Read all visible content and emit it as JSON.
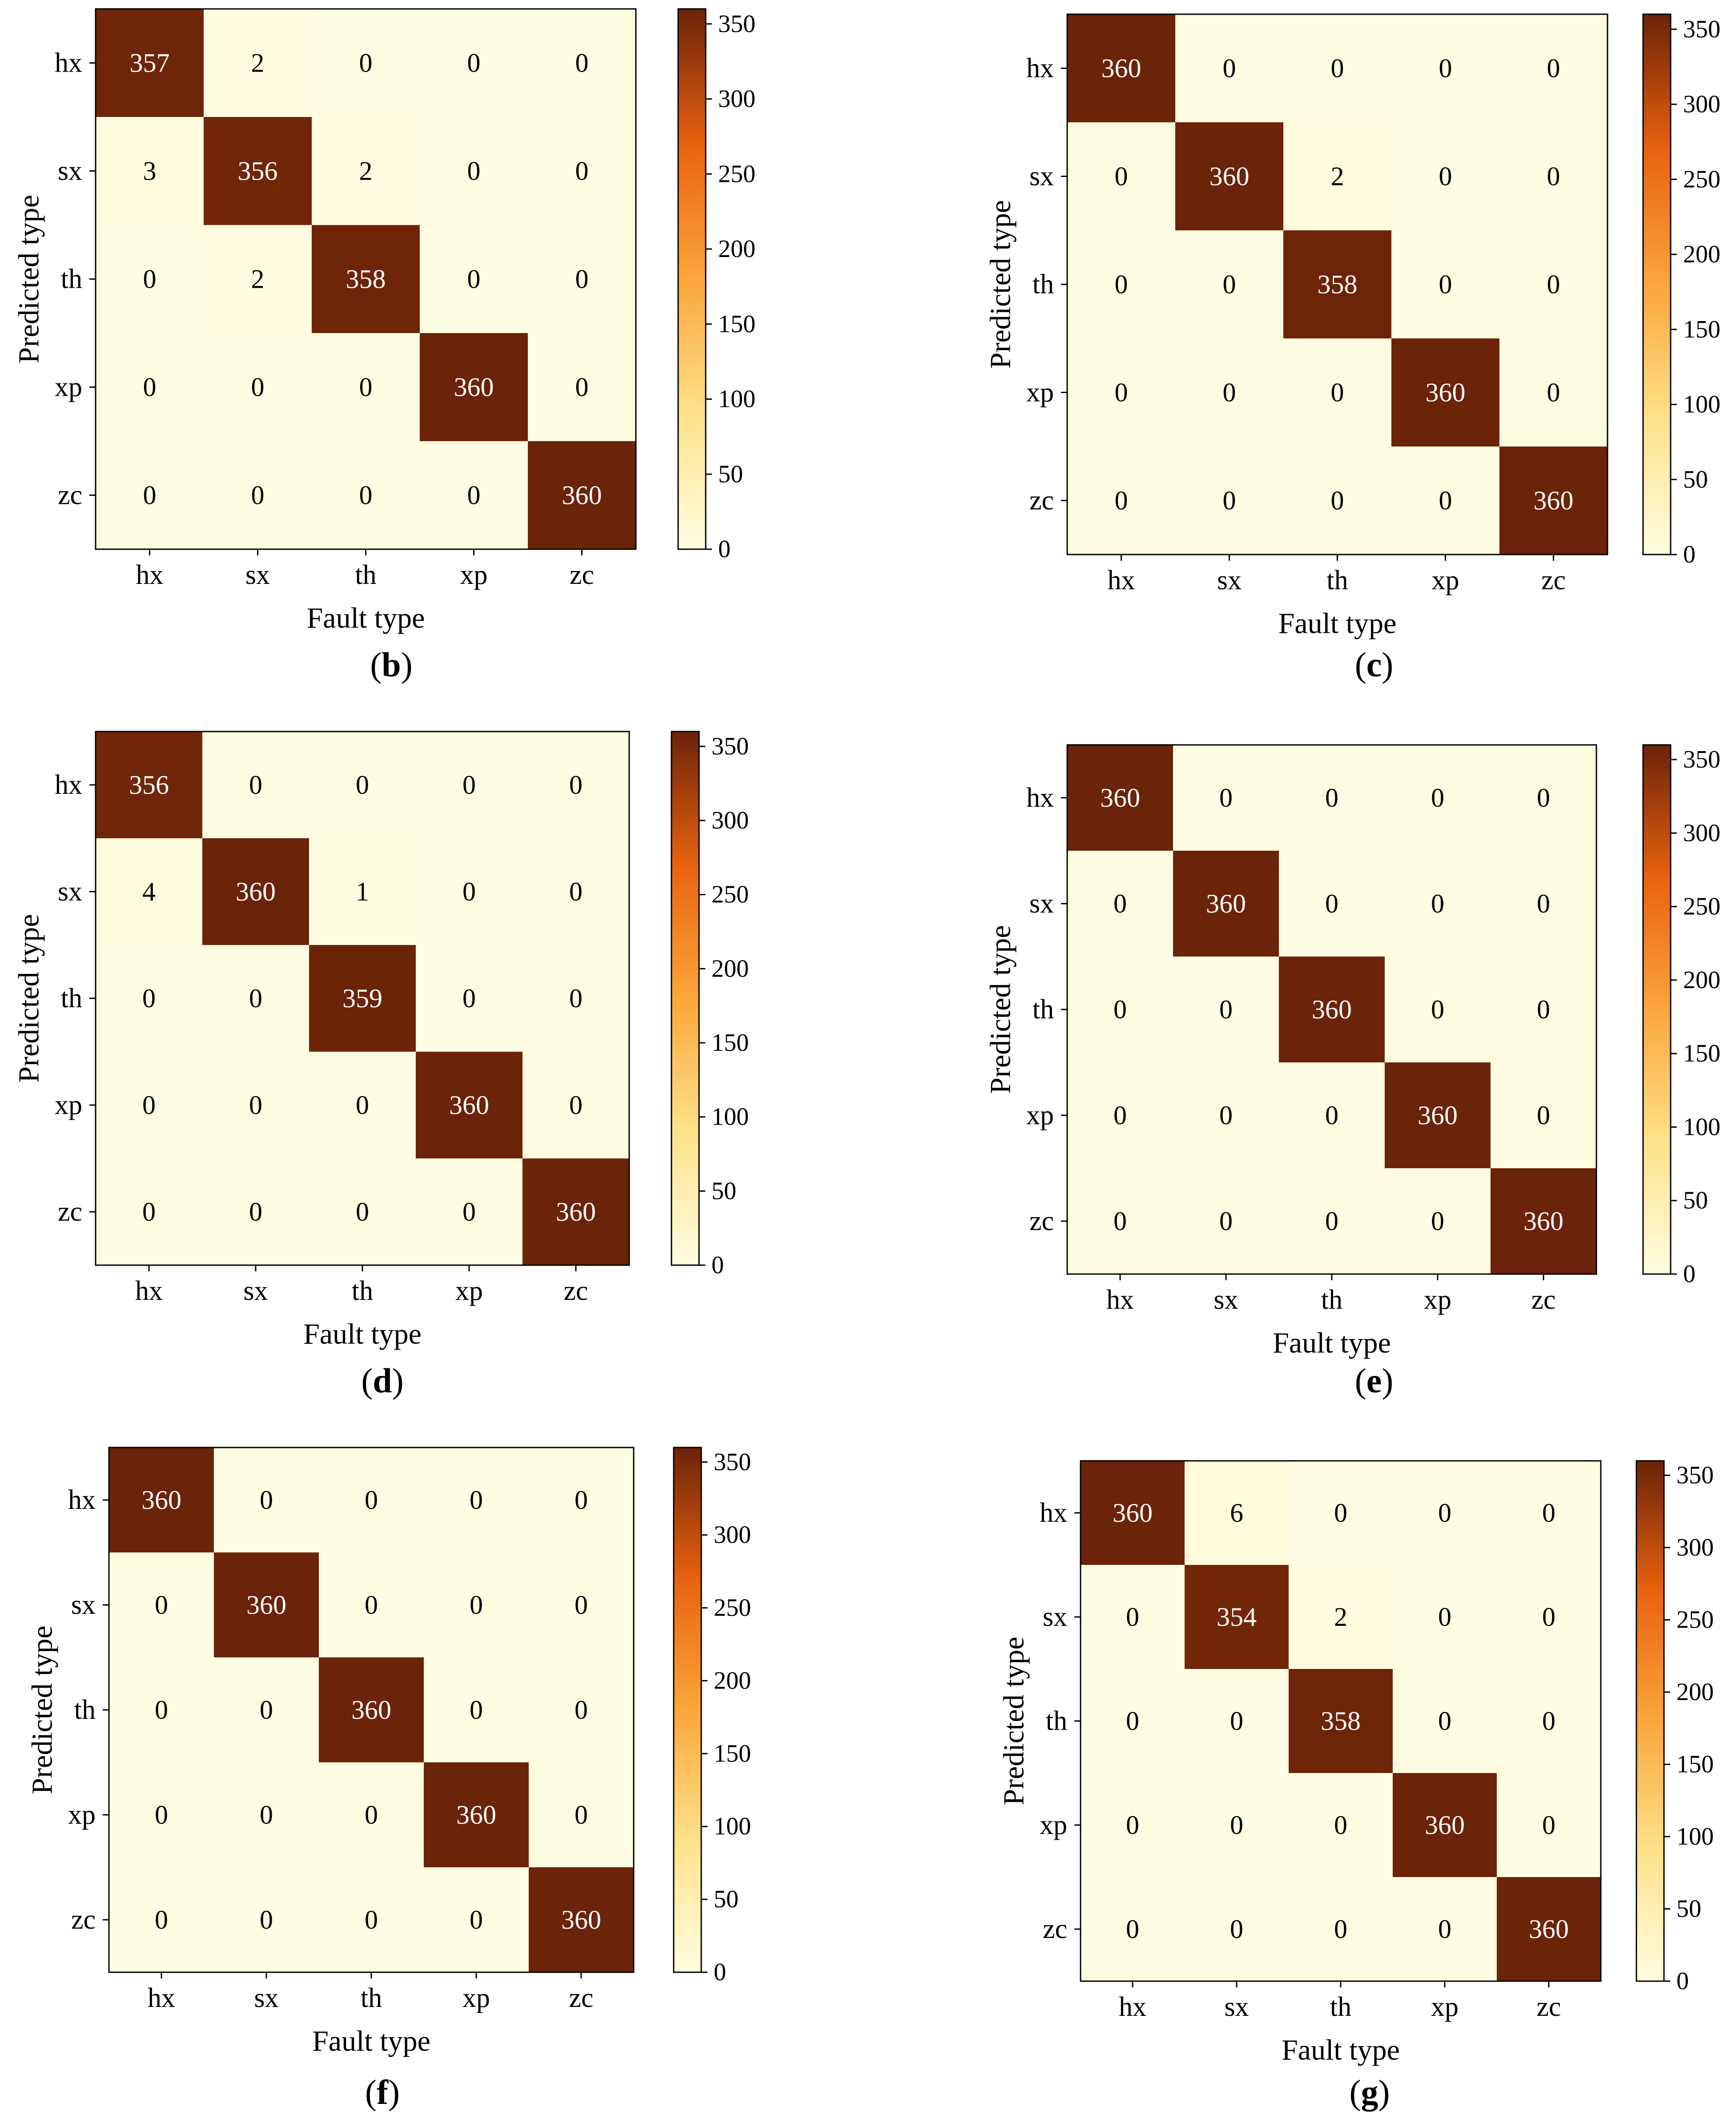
{
  "labels": [
    "hx",
    "sx",
    "th",
    "xp",
    "zc"
  ],
  "xlabel": "Fault  type",
  "ylabel": "Predicted  type",
  "colorbar_ticks": [
    0,
    50,
    100,
    150,
    200,
    250,
    300,
    350
  ],
  "colors": {
    "low": "#fffde1",
    "mid1": "#fde28a",
    "mid2": "#fba63a",
    "mid3": "#e8620f",
    "high": "#6b2309"
  },
  "chart_data": [
    {
      "type": "heatmap",
      "panel_label": "b",
      "x": [
        "hx",
        "sx",
        "th",
        "xp",
        "zc"
      ],
      "y": [
        "hx",
        "sx",
        "th",
        "xp",
        "zc"
      ],
      "z": [
        [
          357,
          2,
          0,
          0,
          0
        ],
        [
          3,
          356,
          2,
          0,
          0
        ],
        [
          0,
          2,
          358,
          0,
          0
        ],
        [
          0,
          0,
          0,
          360,
          0
        ],
        [
          0,
          0,
          0,
          0,
          360
        ]
      ],
      "zlim": [
        0,
        360
      ],
      "xlabel": "Fault  type",
      "ylabel": "Predicted  type"
    },
    {
      "type": "heatmap",
      "panel_label": "c",
      "x": [
        "hx",
        "sx",
        "th",
        "xp",
        "zc"
      ],
      "y": [
        "hx",
        "sx",
        "th",
        "xp",
        "zc"
      ],
      "z": [
        [
          360,
          0,
          0,
          0,
          0
        ],
        [
          0,
          360,
          2,
          0,
          0
        ],
        [
          0,
          0,
          358,
          0,
          0
        ],
        [
          0,
          0,
          0,
          360,
          0
        ],
        [
          0,
          0,
          0,
          0,
          360
        ]
      ],
      "zlim": [
        0,
        360
      ],
      "xlabel": "Fault  type",
      "ylabel": "Predicted  type"
    },
    {
      "type": "heatmap",
      "panel_label": "d",
      "x": [
        "hx",
        "sx",
        "th",
        "xp",
        "zc"
      ],
      "y": [
        "hx",
        "sx",
        "th",
        "xp",
        "zc"
      ],
      "z": [
        [
          356,
          0,
          0,
          0,
          0
        ],
        [
          4,
          360,
          1,
          0,
          0
        ],
        [
          0,
          0,
          359,
          0,
          0
        ],
        [
          0,
          0,
          0,
          360,
          0
        ],
        [
          0,
          0,
          0,
          0,
          360
        ]
      ],
      "zlim": [
        0,
        360
      ],
      "xlabel": "Fault  type",
      "ylabel": "Predicted  type"
    },
    {
      "type": "heatmap",
      "panel_label": "e",
      "x": [
        "hx",
        "sx",
        "th",
        "xp",
        "zc"
      ],
      "y": [
        "hx",
        "sx",
        "th",
        "xp",
        "zc"
      ],
      "z": [
        [
          360,
          0,
          0,
          0,
          0
        ],
        [
          0,
          360,
          0,
          0,
          0
        ],
        [
          0,
          0,
          360,
          0,
          0
        ],
        [
          0,
          0,
          0,
          360,
          0
        ],
        [
          0,
          0,
          0,
          0,
          360
        ]
      ],
      "zlim": [
        0,
        360
      ],
      "xlabel": "Fault  type",
      "ylabel": "Predicted  type"
    },
    {
      "type": "heatmap",
      "panel_label": "f",
      "x": [
        "hx",
        "sx",
        "th",
        "xp",
        "zc"
      ],
      "y": [
        "hx",
        "sx",
        "th",
        "xp",
        "zc"
      ],
      "z": [
        [
          360,
          0,
          0,
          0,
          0
        ],
        [
          0,
          360,
          0,
          0,
          0
        ],
        [
          0,
          0,
          360,
          0,
          0
        ],
        [
          0,
          0,
          0,
          360,
          0
        ],
        [
          0,
          0,
          0,
          0,
          360
        ]
      ],
      "zlim": [
        0,
        360
      ],
      "xlabel": "Fault  type",
      "ylabel": "Predicted  type"
    },
    {
      "type": "heatmap",
      "panel_label": "g",
      "x": [
        "hx",
        "sx",
        "th",
        "xp",
        "zc"
      ],
      "y": [
        "hx",
        "sx",
        "th",
        "xp",
        "zc"
      ],
      "z": [
        [
          360,
          6,
          0,
          0,
          0
        ],
        [
          0,
          354,
          2,
          0,
          0
        ],
        [
          0,
          0,
          358,
          0,
          0
        ],
        [
          0,
          0,
          0,
          360,
          0
        ],
        [
          0,
          0,
          0,
          0,
          360
        ]
      ],
      "zlim": [
        0,
        360
      ],
      "xlabel": "Fault  type",
      "ylabel": "Predicted  type"
    }
  ]
}
